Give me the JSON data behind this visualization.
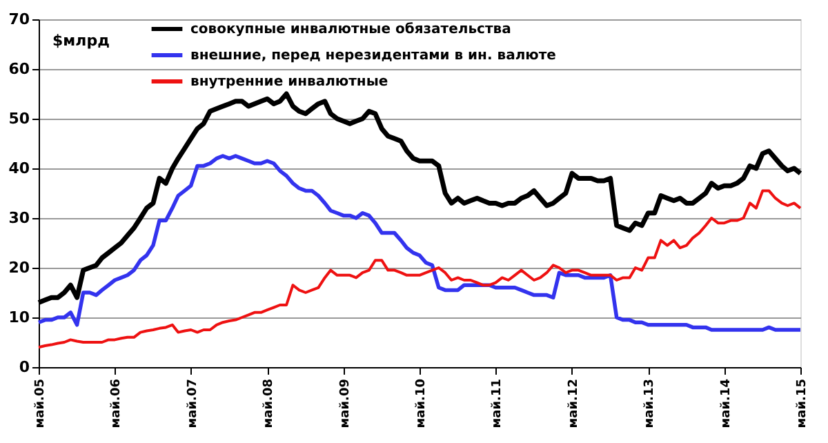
{
  "chart_data": {
    "type": "line",
    "ylabel": "$млрд",
    "x": [
      "2005-05",
      "2005-06",
      "2005-07",
      "2005-08",
      "2005-09",
      "2005-10",
      "2005-11",
      "2005-12",
      "2006-01",
      "2006-02",
      "2006-03",
      "2006-04",
      "2006-05",
      "2006-06",
      "2006-07",
      "2006-08",
      "2006-09",
      "2006-10",
      "2006-11",
      "2006-12",
      "2007-01",
      "2007-02",
      "2007-03",
      "2007-04",
      "2007-05",
      "2007-06",
      "2007-07",
      "2007-08",
      "2007-09",
      "2007-10",
      "2007-11",
      "2007-12",
      "2008-01",
      "2008-02",
      "2008-03",
      "2008-04",
      "2008-05",
      "2008-06",
      "2008-07",
      "2008-08",
      "2008-09",
      "2008-10",
      "2008-11",
      "2008-12",
      "2009-01",
      "2009-02",
      "2009-03",
      "2009-04",
      "2009-05",
      "2009-06",
      "2009-07",
      "2009-08",
      "2009-09",
      "2009-10",
      "2009-11",
      "2009-12",
      "2010-01",
      "2010-02",
      "2010-03",
      "2010-04",
      "2010-05",
      "2010-06",
      "2010-07",
      "2010-08",
      "2010-09",
      "2010-10",
      "2010-11",
      "2010-12",
      "2011-01",
      "2011-02",
      "2011-03",
      "2011-04",
      "2011-05",
      "2011-06",
      "2011-07",
      "2011-08",
      "2011-09",
      "2011-10",
      "2011-11",
      "2011-12",
      "2012-01",
      "2012-02",
      "2012-03",
      "2012-04",
      "2012-05",
      "2012-06",
      "2012-07",
      "2012-08",
      "2012-09",
      "2012-10",
      "2012-11",
      "2012-12",
      "2013-01",
      "2013-02",
      "2013-03",
      "2013-04",
      "2013-05",
      "2013-06",
      "2013-07",
      "2013-08",
      "2013-09",
      "2013-10",
      "2013-11",
      "2013-12",
      "2014-01",
      "2014-02",
      "2014-03",
      "2014-04",
      "2014-05",
      "2014-06",
      "2014-07",
      "2014-08",
      "2014-09",
      "2014-10",
      "2014-11",
      "2014-12",
      "2015-01",
      "2015-02",
      "2015-03",
      "2015-04",
      "2015-05"
    ],
    "series": [
      {
        "name": "совокупные  инвалютные  обязательства",
        "color": "#000000",
        "values": [
          13,
          13.5,
          14,
          14,
          15,
          16.5,
          14,
          19.5,
          20,
          20.5,
          22,
          23,
          24,
          25,
          26.5,
          28,
          30,
          32,
          33,
          38,
          37,
          40,
          42,
          44,
          46,
          48,
          49,
          51.5,
          52,
          52.5,
          53,
          53.5,
          53.5,
          52.5,
          53,
          53.5,
          54,
          53,
          53.5,
          55,
          52.5,
          51.5,
          51,
          52,
          53,
          53.5,
          51,
          50,
          49.5,
          49,
          49.5,
          50,
          51.5,
          51,
          48,
          46.5,
          46,
          45.5,
          43.5,
          42,
          41.5,
          41.5,
          41.5,
          40.5,
          35,
          33,
          34,
          33,
          33.5,
          34,
          33.5,
          33,
          33,
          32.5,
          33,
          33,
          34,
          34.5,
          35.5,
          34,
          32.5,
          33,
          34,
          35,
          39,
          38,
          38,
          38,
          37.5,
          37.5,
          38,
          28.5,
          28,
          27.5,
          29,
          28.5,
          31,
          31,
          34.5,
          34,
          33.5,
          34,
          33,
          33,
          34,
          35,
          37,
          36,
          36.5,
          36.5,
          37,
          38,
          40.5,
          40,
          43,
          43.5,
          42,
          40.5,
          39.5,
          40,
          39
        ]
      },
      {
        "name": "внешние,  перед нерезидентами  в ин. валюте",
        "color": "#3333ee",
        "values": [
          9,
          9.5,
          9.5,
          10,
          10,
          11,
          8.5,
          15,
          15,
          14.5,
          15.5,
          16.5,
          17.5,
          18,
          18.5,
          19.5,
          21.5,
          22.5,
          24.5,
          29.5,
          29.5,
          32,
          34.5,
          35.5,
          36.5,
          40.5,
          40.5,
          41,
          42,
          42.5,
          42,
          42.5,
          42,
          41.5,
          41,
          41,
          41.5,
          41,
          39.5,
          38.5,
          37,
          36,
          35.5,
          35.5,
          34.5,
          33,
          31.5,
          31,
          30.5,
          30.5,
          30,
          31,
          30.5,
          29,
          27,
          27,
          27,
          25.5,
          24,
          23,
          22.5,
          21,
          20.5,
          16,
          15.5,
          15.5,
          15.5,
          16.5,
          16.5,
          16.5,
          16.5,
          16.5,
          16,
          16,
          16,
          16,
          15.5,
          15,
          14.5,
          14.5,
          14.5,
          14,
          19,
          18.5,
          18.5,
          18.5,
          18,
          18,
          18,
          18,
          18.5,
          10,
          9.5,
          9.5,
          9,
          9,
          8.5,
          8.5,
          8.5,
          8.5,
          8.5,
          8.5,
          8.5,
          8,
          8,
          8,
          7.5,
          7.5,
          7.5,
          7.5,
          7.5,
          7.5,
          7.5,
          7.5,
          7.5,
          8,
          7.5,
          7.5,
          7.5,
          7.5,
          7.5
        ]
      },
      {
        "name": "внутренние  инвалютные",
        "color": "#ee1111",
        "values": [
          4,
          4.3,
          4.5,
          4.8,
          5,
          5.5,
          5.2,
          5,
          5,
          5,
          5,
          5.5,
          5.5,
          5.8,
          6,
          6,
          7,
          7.3,
          7.5,
          7.8,
          8,
          8.5,
          7,
          7.3,
          7.5,
          7,
          7.5,
          7.5,
          8.5,
          9,
          9.3,
          9.5,
          10,
          10.5,
          11,
          11,
          11.5,
          12,
          12.5,
          12.5,
          16.5,
          15.5,
          15,
          15.5,
          16,
          18,
          19.5,
          18.5,
          18.5,
          18.5,
          18,
          19,
          19.5,
          21.5,
          21.5,
          19.5,
          19.5,
          19,
          18.5,
          18.5,
          18.5,
          19,
          19.5,
          20,
          19,
          17.5,
          18,
          17.5,
          17.5,
          17,
          16.5,
          16.5,
          17,
          18,
          17.5,
          18.5,
          19.5,
          18.5,
          17.5,
          18,
          19,
          20.5,
          20,
          19,
          19.5,
          19.5,
          19,
          18.5,
          18.5,
          18.5,
          18.5,
          17.5,
          18,
          18,
          20,
          19.5,
          22,
          22,
          25.5,
          24.5,
          25.5,
          24,
          24.5,
          26,
          27,
          28.5,
          30,
          29,
          29,
          29.5,
          29.5,
          30,
          33,
          32,
          35.5,
          35.5,
          34,
          33,
          32.5,
          33,
          32
        ]
      }
    ],
    "xlim": [
      "2005-05",
      "2015-05"
    ],
    "xticks": [
      {
        "value": "2005-05",
        "label": "май.05"
      },
      {
        "value": "2006-05",
        "label": "май.06"
      },
      {
        "value": "2007-05",
        "label": "май.07"
      },
      {
        "value": "2008-05",
        "label": "май.08"
      },
      {
        "value": "2009-05",
        "label": "май.09"
      },
      {
        "value": "2010-05",
        "label": "май.10"
      },
      {
        "value": "2011-05",
        "label": "май.11"
      },
      {
        "value": "2012-05",
        "label": "май.12"
      },
      {
        "value": "2013-05",
        "label": "май.13"
      },
      {
        "value": "2014-05",
        "label": "май.14"
      },
      {
        "value": "2015-05",
        "label": "май.15"
      }
    ],
    "ylim": [
      0,
      70
    ],
    "yticks": [
      0,
      10,
      20,
      30,
      40,
      50,
      60,
      70
    ],
    "grid": "y",
    "legend": "top",
    "marker": "none",
    "line_style": "solid"
  }
}
